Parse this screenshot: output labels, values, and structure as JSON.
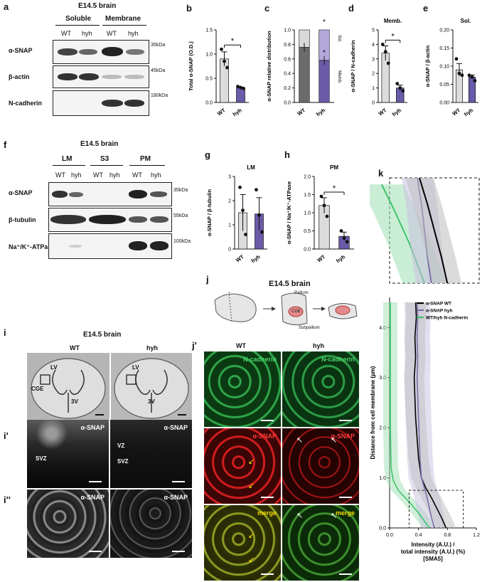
{
  "panels": {
    "a": "a",
    "b": "b",
    "c": "c",
    "d": "d",
    "e": "e",
    "f": "f",
    "g": "g",
    "h": "h",
    "i": "i",
    "i1": "i'",
    "i2": "i''",
    "j": "j",
    "j1": "j'",
    "k": "k"
  },
  "blot_a": {
    "title": "E14.5 brain",
    "groups": [
      "Soluble",
      "Membrane"
    ],
    "lanes": [
      "WT",
      "hyh",
      "WT",
      "hyh"
    ],
    "rows": [
      {
        "label": "α-SNAP",
        "kda": "35kDa"
      },
      {
        "label": "β-actin",
        "kda": "45kDa"
      },
      {
        "label": "N-cadherin",
        "kda": "180kDa"
      }
    ]
  },
  "blot_f": {
    "title": "E14.5 brain",
    "groups": [
      "LM",
      "S3",
      "PM"
    ],
    "lanes": [
      "WT",
      "hyh",
      "WT",
      "hyh",
      "WT",
      "hyh"
    ],
    "rows": [
      {
        "label": "α-SNAP",
        "kda": "35kDa"
      },
      {
        "label": "β-tubulin",
        "kda": "55kDa"
      },
      {
        "label": "Na⁺/K⁺-ATPase",
        "kda": "100kDa"
      }
    ]
  },
  "chart_data": [
    {
      "id": "b",
      "type": "bar",
      "categories": [
        "WT",
        "hyh"
      ],
      "values": [
        0.9,
        0.3
      ],
      "points": [
        [
          1.1,
          0.85,
          0.72
        ],
        [
          0.33,
          0.31,
          0.29
        ]
      ],
      "ylabel": "Total α-SNAP (O.D.)",
      "ylim": [
        0,
        1.5
      ],
      "yticks": [
        "0.0",
        "0.5",
        "1.0",
        "1.5"
      ],
      "sig": "*"
    },
    {
      "id": "c",
      "type": "bar",
      "categories": [
        "WT",
        "hyh"
      ],
      "series": [
        {
          "name": "Memb.",
          "values": [
            0.76,
            0.58
          ]
        },
        {
          "name": "Sol.",
          "values": [
            0.24,
            0.42
          ]
        }
      ],
      "ylabel": "α-SNAP relative distribution",
      "ylim": [
        0,
        1.0
      ],
      "yticks": [
        "0.0",
        "0.2",
        "0.4",
        "0.6",
        "0.8",
        "1.0"
      ],
      "sig": "*"
    },
    {
      "id": "d",
      "type": "bar",
      "title": "Memb.",
      "categories": [
        "WT",
        "hyh"
      ],
      "values": [
        3.4,
        1.0
      ],
      "points": [
        [
          4.0,
          3.5,
          2.7
        ],
        [
          1.3,
          1.0,
          0.8
        ]
      ],
      "ylabel": "α-SNAP / N-cadherin",
      "ylim": [
        0,
        5
      ],
      "yticks": [
        "0",
        "1",
        "2",
        "3",
        "4",
        "5"
      ],
      "sig": "*"
    },
    {
      "id": "e",
      "type": "bar",
      "title": "Sol.",
      "categories": [
        "WT",
        "hyh"
      ],
      "values": [
        0.09,
        0.07
      ],
      "points": [
        [
          0.12,
          0.08,
          0.075
        ],
        [
          0.075,
          0.07,
          0.06
        ]
      ],
      "ylabel": "α-SNAP / β-actin",
      "ylim": [
        0,
        0.2
      ],
      "yticks": [
        "0.00",
        "0.05",
        "0.10",
        "0.15",
        "0.20"
      ]
    },
    {
      "id": "g",
      "type": "bar",
      "title": "LM",
      "categories": [
        "WT",
        "hyh"
      ],
      "values": [
        1.5,
        1.45
      ],
      "points": [
        [
          2.55,
          1.6,
          0.6
        ],
        [
          2.45,
          1.4,
          0.7
        ]
      ],
      "ylabel": "α-SNAP / β-tubulin",
      "ylim": [
        0,
        3
      ],
      "yticks": [
        "0",
        "1",
        "2",
        "3"
      ]
    },
    {
      "id": "h",
      "type": "bar",
      "title": "PM",
      "categories": [
        "WT",
        "hyh"
      ],
      "values": [
        1.2,
        0.35
      ],
      "points": [
        [
          1.45,
          1.2,
          0.9
        ],
        [
          0.5,
          0.3,
          0.2
        ]
      ],
      "ylabel": "α-SNAP / Na⁺/K⁺-ATPase",
      "ylim": [
        0,
        2.0
      ],
      "yticks": [
        "0.0",
        "0.5",
        "1.0",
        "1.5",
        "2.0"
      ],
      "sig": "*"
    },
    {
      "id": "k",
      "type": "line",
      "xlabel": "Intensity (A.U.) / total intensity (A.U.) (%) [SMA5]",
      "ylabel": "Distance from cell membrane (µm)",
      "xlim": [
        0,
        1.2
      ],
      "ylim": [
        0,
        4.6
      ],
      "xticks": [
        "0.0",
        "0.4",
        "0.8",
        "1.2"
      ],
      "yticks": [
        "0.0",
        "1.0",
        "2.0",
        "3.0",
        "4.0"
      ],
      "series": [
        {
          "name": "α-SNAP WT",
          "color": "#000000",
          "x": [
            0.78,
            0.72,
            0.65,
            0.58,
            0.5,
            0.44,
            0.4,
            0.38,
            0.36,
            0.35,
            0.34,
            0.36,
            0.35,
            0.37,
            0.36
          ],
          "y": [
            0.0,
            0.2,
            0.4,
            0.6,
            0.8,
            1.0,
            1.4,
            1.8,
            2.2,
            2.6,
            3.0,
            3.4,
            3.8,
            4.2,
            4.5
          ]
        },
        {
          "name": "α-SNAP hyh",
          "color": "#7a6fa8",
          "x": [
            0.62,
            0.58,
            0.55,
            0.52,
            0.48,
            0.44,
            0.42,
            0.41,
            0.4,
            0.39,
            0.38,
            0.39,
            0.38,
            0.39,
            0.38
          ],
          "y": [
            0.0,
            0.2,
            0.4,
            0.6,
            0.8,
            1.0,
            1.4,
            1.8,
            2.2,
            2.6,
            3.0,
            3.4,
            3.8,
            4.2,
            4.5
          ]
        },
        {
          "name": "WT/hyh N-cadherin",
          "color": "#3ec46b",
          "x": [
            0.55,
            0.4,
            0.25,
            0.12,
            0.05,
            0.02,
            0.01,
            0.01,
            0.01
          ],
          "y": [
            0.0,
            0.3,
            0.55,
            0.75,
            0.95,
            1.2,
            2.0,
            3.0,
            4.5
          ]
        }
      ]
    }
  ],
  "panel_i": {
    "title": "E14.5 brain",
    "cols": [
      "WT",
      "hyh"
    ],
    "labels": {
      "lv": "LV",
      "cge": "CGE",
      "v3": "3V",
      "vz": "VZ",
      "svz": "SVZ"
    },
    "stain": "α-SNAP"
  },
  "panel_j": {
    "title": "E14.5 brain",
    "pallium": "Pallium",
    "subpallium": "Subpallium",
    "cge": "CGE",
    "cols": [
      "WT",
      "hyh"
    ],
    "rows": [
      "N-cadherin",
      "α-SNAP",
      "merge"
    ]
  }
}
